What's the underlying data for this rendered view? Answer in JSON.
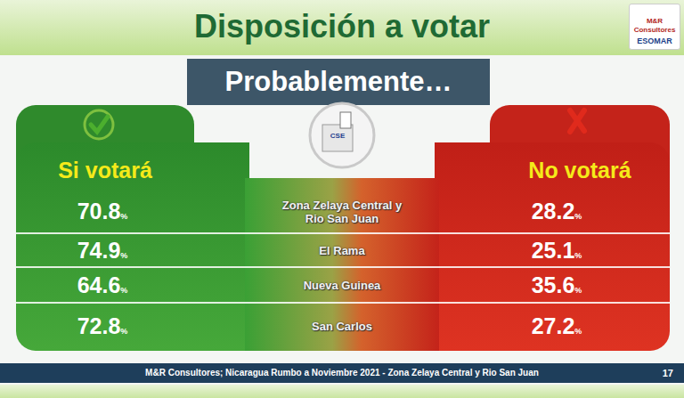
{
  "chart_data": {
    "type": "table",
    "title": "Disposición a votar",
    "subtitle": "Probablemente…",
    "categories": [
      "Zona Zelaya Central y Rio San Juan",
      "El Rama",
      "Nueva Guinea",
      "San Carlos"
    ],
    "series": [
      {
        "name": "Si votará",
        "color": "#2e8f2c",
        "values": [
          70.8,
          74.9,
          64.6,
          72.8
        ],
        "value_labels": [
          "70.8%",
          "74.9%",
          "64.6%",
          "72.8%"
        ]
      },
      {
        "name": "No votará",
        "color": "#c8231a",
        "values": [
          28.2,
          25.1,
          35.6,
          27.2
        ],
        "value_labels": [
          "28.2%",
          "25.1%",
          "35.6%",
          "27.2%"
        ]
      }
    ],
    "data_labels": true,
    "annotations": [
      "M&R Consultores; Nicaragua Rumbo a Noviembre 2021 - Zona Zelaya Central y Rio San Juan",
      "17",
      "M&R Consultores",
      "ESOMAR",
      "CSE"
    ]
  }
}
